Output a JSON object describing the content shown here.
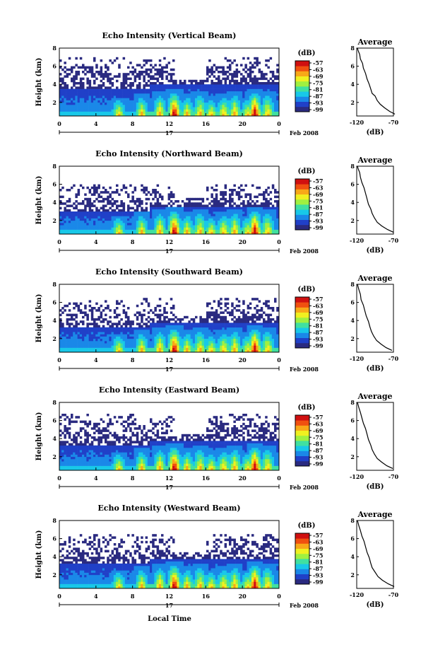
{
  "figure": {
    "date_label": "Feb 2008",
    "xlabel": "Local Time",
    "day_label": "17"
  },
  "chart_data": [
    {
      "type": "heatmap",
      "beam": "vertical",
      "title": "Echo Intensity (Vertical Beam)",
      "ylabel": "Height (km)",
      "x_ticks": [
        "0",
        "4",
        "8",
        "12",
        "16",
        "20",
        "0"
      ],
      "y_ticks": [
        "2",
        "4",
        "6",
        "8"
      ],
      "xlim": [
        0,
        24
      ],
      "ylim": [
        0.5,
        8
      ],
      "colorbar_label": "(dB)",
      "colorbar_ticks": [
        "-57",
        "-63",
        "-69",
        "-75",
        "-81",
        "-87",
        "-93",
        "-99"
      ],
      "colorbar_range": [
        -99,
        -57
      ],
      "colors": [
        "#2a2a80",
        "#2040c8",
        "#1a88e8",
        "#18c8e8",
        "#40e0a0",
        "#a0f040",
        "#f0f020",
        "#f8a818",
        "#f05010",
        "#d01010"
      ],
      "echo_top_km": 4.0,
      "noise_top_km": 7.0,
      "average": {
        "title": "Average",
        "xlabel": "(dB)",
        "x_ticks": [
          "-120",
          "-70"
        ],
        "y_ticks": [
          "2",
          "4",
          "6",
          "8"
        ],
        "xlim": [
          -120,
          -70
        ],
        "profile": [
          [
            -68,
            0.7
          ],
          [
            -75,
            1.0
          ],
          [
            -82,
            1.4
          ],
          [
            -88,
            1.8
          ],
          [
            -92,
            2.2
          ],
          [
            -95,
            2.7
          ],
          [
            -99,
            3.0
          ],
          [
            -101,
            3.5
          ],
          [
            -103,
            4.0
          ],
          [
            -106,
            4.6
          ],
          [
            -108,
            5.2
          ],
          [
            -111,
            5.8
          ],
          [
            -112,
            6.3
          ],
          [
            -115,
            6.8
          ],
          [
            -116,
            7.3
          ],
          [
            -118,
            7.7
          ],
          [
            -119,
            8.0
          ]
        ]
      }
    },
    {
      "type": "heatmap",
      "beam": "northward",
      "title": "Echo Intensity (Northward Beam)",
      "ylabel": "Height (km)",
      "x_ticks": [
        "0",
        "4",
        "8",
        "12",
        "16",
        "20",
        "0"
      ],
      "y_ticks": [
        "2",
        "4",
        "6",
        "8"
      ],
      "xlim": [
        0,
        24
      ],
      "ylim": [
        0.5,
        8
      ],
      "colorbar_label": "(dB)",
      "colorbar_ticks": [
        "-57",
        "-63",
        "-69",
        "-75",
        "-81",
        "-87",
        "-93",
        "-99"
      ],
      "colorbar_range": [
        -99,
        -57
      ],
      "echo_top_km": 3.6,
      "noise_top_km": 6.0,
      "average": {
        "title": "Average",
        "xlabel": "(dB)",
        "x_ticks": [
          "-120",
          "-70"
        ],
        "y_ticks": [
          "2",
          "4",
          "6",
          "8"
        ],
        "xlim": [
          -120,
          -70
        ],
        "profile": [
          [
            -70,
            0.7
          ],
          [
            -78,
            1.0
          ],
          [
            -86,
            1.4
          ],
          [
            -92,
            1.8
          ],
          [
            -96,
            2.3
          ],
          [
            -99,
            2.8
          ],
          [
            -101,
            3.3
          ],
          [
            -104,
            3.8
          ],
          [
            -106,
            4.4
          ],
          [
            -108,
            5.0
          ],
          [
            -110,
            5.6
          ],
          [
            -113,
            6.2
          ],
          [
            -115,
            6.8
          ],
          [
            -116,
            7.3
          ],
          [
            -118,
            7.7
          ],
          [
            -119,
            8.0
          ]
        ]
      }
    },
    {
      "type": "heatmap",
      "beam": "southward",
      "title": "Echo Intensity (Southward Beam)",
      "ylabel": "Height (km)",
      "x_ticks": [
        "0",
        "4",
        "8",
        "12",
        "16",
        "20",
        "0"
      ],
      "y_ticks": [
        "2",
        "4",
        "6",
        "8"
      ],
      "xlim": [
        0,
        24
      ],
      "ylim": [
        0.5,
        8
      ],
      "colorbar_label": "(dB)",
      "colorbar_ticks": [
        "-57",
        "-63",
        "-69",
        "-75",
        "-81",
        "-87",
        "-93",
        "-99"
      ],
      "colorbar_range": [
        -99,
        -57
      ],
      "echo_top_km": 3.8,
      "noise_top_km": 6.5,
      "average": {
        "title": "Average",
        "xlabel": "(dB)",
        "x_ticks": [
          "-120",
          "-70"
        ],
        "y_ticks": [
          "2",
          "4",
          "6",
          "8"
        ],
        "xlim": [
          -120,
          -70
        ],
        "profile": [
          [
            -72,
            0.7
          ],
          [
            -80,
            1.0
          ],
          [
            -87,
            1.4
          ],
          [
            -93,
            1.8
          ],
          [
            -97,
            2.3
          ],
          [
            -100,
            2.8
          ],
          [
            -102,
            3.3
          ],
          [
            -104,
            3.9
          ],
          [
            -107,
            4.5
          ],
          [
            -109,
            5.1
          ],
          [
            -111,
            5.7
          ],
          [
            -114,
            6.3
          ],
          [
            -115,
            6.9
          ],
          [
            -117,
            7.4
          ],
          [
            -119,
            8.0
          ]
        ]
      }
    },
    {
      "type": "heatmap",
      "beam": "eastward",
      "title": "Echo Intensity (Eastward Beam)",
      "ylabel": "Height (km)",
      "x_ticks": [
        "0",
        "4",
        "8",
        "12",
        "16",
        "20",
        "0"
      ],
      "y_ticks": [
        "2",
        "4",
        "6",
        "8"
      ],
      "xlim": [
        0,
        24
      ],
      "ylim": [
        0.5,
        8
      ],
      "colorbar_label": "(dB)",
      "colorbar_ticks": [
        "-57",
        "-63",
        "-69",
        "-75",
        "-81",
        "-87",
        "-93",
        "-99"
      ],
      "colorbar_range": [
        -99,
        -57
      ],
      "echo_top_km": 3.8,
      "noise_top_km": 6.8,
      "average": {
        "title": "Average",
        "xlabel": "(dB)",
        "x_ticks": [
          "-120",
          "-70"
        ],
        "y_ticks": [
          "2",
          "4",
          "6",
          "8"
        ],
        "xlim": [
          -120,
          -70
        ],
        "profile": [
          [
            -71,
            0.7
          ],
          [
            -79,
            1.0
          ],
          [
            -86,
            1.4
          ],
          [
            -92,
            1.8
          ],
          [
            -96,
            2.3
          ],
          [
            -99,
            2.8
          ],
          [
            -101,
            3.3
          ],
          [
            -104,
            3.9
          ],
          [
            -106,
            4.5
          ],
          [
            -108,
            5.1
          ],
          [
            -111,
            5.7
          ],
          [
            -113,
            6.3
          ],
          [
            -115,
            6.9
          ],
          [
            -117,
            7.4
          ],
          [
            -119,
            8.0
          ]
        ]
      }
    },
    {
      "type": "heatmap",
      "beam": "westward",
      "title": "Echo Intensity (Westward Beam)",
      "ylabel": "Height (km)",
      "x_ticks": [
        "0",
        "4",
        "8",
        "12",
        "16",
        "20",
        "0"
      ],
      "y_ticks": [
        "2",
        "4",
        "6",
        "8"
      ],
      "xlim": [
        0,
        24
      ],
      "ylim": [
        0.5,
        8
      ],
      "colorbar_label": "(dB)",
      "colorbar_ticks": [
        "-57",
        "-63",
        "-69",
        "-75",
        "-81",
        "-87",
        "-93",
        "-99"
      ],
      "colorbar_range": [
        -99,
        -57
      ],
      "echo_top_km": 3.8,
      "noise_top_km": 6.6,
      "average": {
        "title": "Average",
        "xlabel": "(dB)",
        "x_ticks": [
          "-120",
          "-70"
        ],
        "y_ticks": [
          "2",
          "4",
          "6",
          "8"
        ],
        "xlim": [
          -120,
          -70
        ],
        "profile": [
          [
            -69,
            0.7
          ],
          [
            -77,
            1.0
          ],
          [
            -85,
            1.4
          ],
          [
            -91,
            1.8
          ],
          [
            -95,
            2.3
          ],
          [
            -99,
            2.8
          ],
          [
            -101,
            3.3
          ],
          [
            -103,
            3.9
          ],
          [
            -106,
            4.5
          ],
          [
            -108,
            5.1
          ],
          [
            -110,
            5.7
          ],
          [
            -113,
            6.3
          ],
          [
            -115,
            6.9
          ],
          [
            -117,
            7.4
          ],
          [
            -119,
            8.0
          ]
        ]
      }
    }
  ]
}
